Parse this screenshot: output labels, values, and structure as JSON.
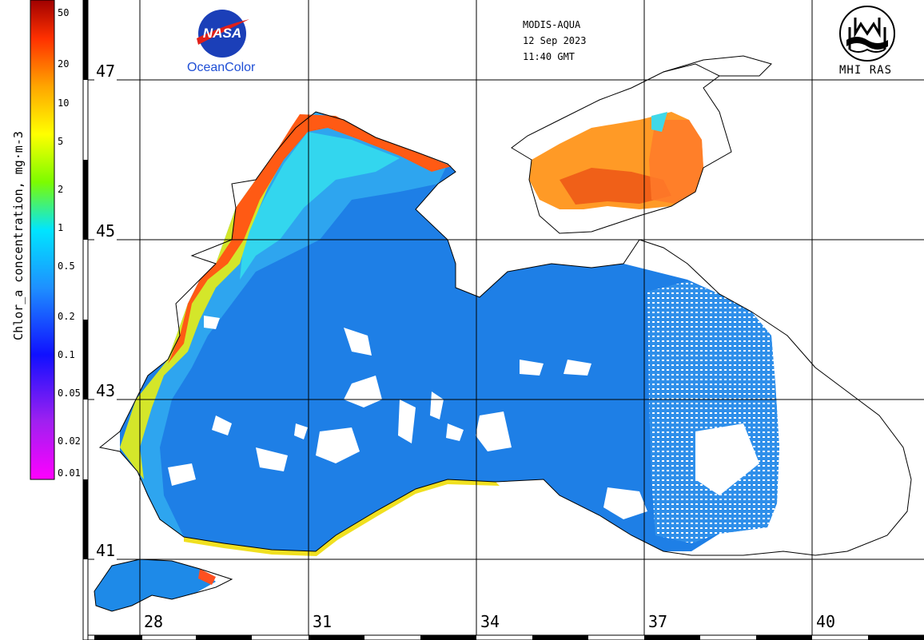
{
  "header": {
    "sensor": "MODIS-AQUA",
    "date": "12 Sep 2023",
    "time": "11:40 GMT"
  },
  "logos": {
    "nasa": {
      "emblem_text": "NASA",
      "caption": "OceanColor"
    },
    "mhi": {
      "caption": "MHI RAS"
    }
  },
  "colorbar": {
    "title": "Chlor_a concentration, mg·m-3",
    "ticks": [
      "50",
      "20",
      "10",
      "5",
      "2",
      "1",
      "0.5",
      "0.2",
      "0.1",
      "0.05",
      "0.02",
      "0.01"
    ],
    "scale": "log",
    "colors": [
      "#ff00ff",
      "#8a2be2",
      "#0000ff",
      "#1e90ff",
      "#00e5ff",
      "#7cfc00",
      "#ffff00",
      "#ffa500",
      "#ff4500",
      "#b22222"
    ]
  },
  "grid": {
    "latitudes": [
      "47",
      "45",
      "43",
      "41"
    ],
    "longitudes": [
      "28",
      "31",
      "34",
      "37",
      "40"
    ]
  },
  "colors": {
    "sea_open": "#1e7fe6",
    "sea_shelf": "#2fa8ef",
    "coastal_high": "#ff6a1a",
    "coastal_mid": "#ffd21a",
    "azov": "#ff9a26",
    "clouds": "#ffffff",
    "coastline": "#000000"
  }
}
